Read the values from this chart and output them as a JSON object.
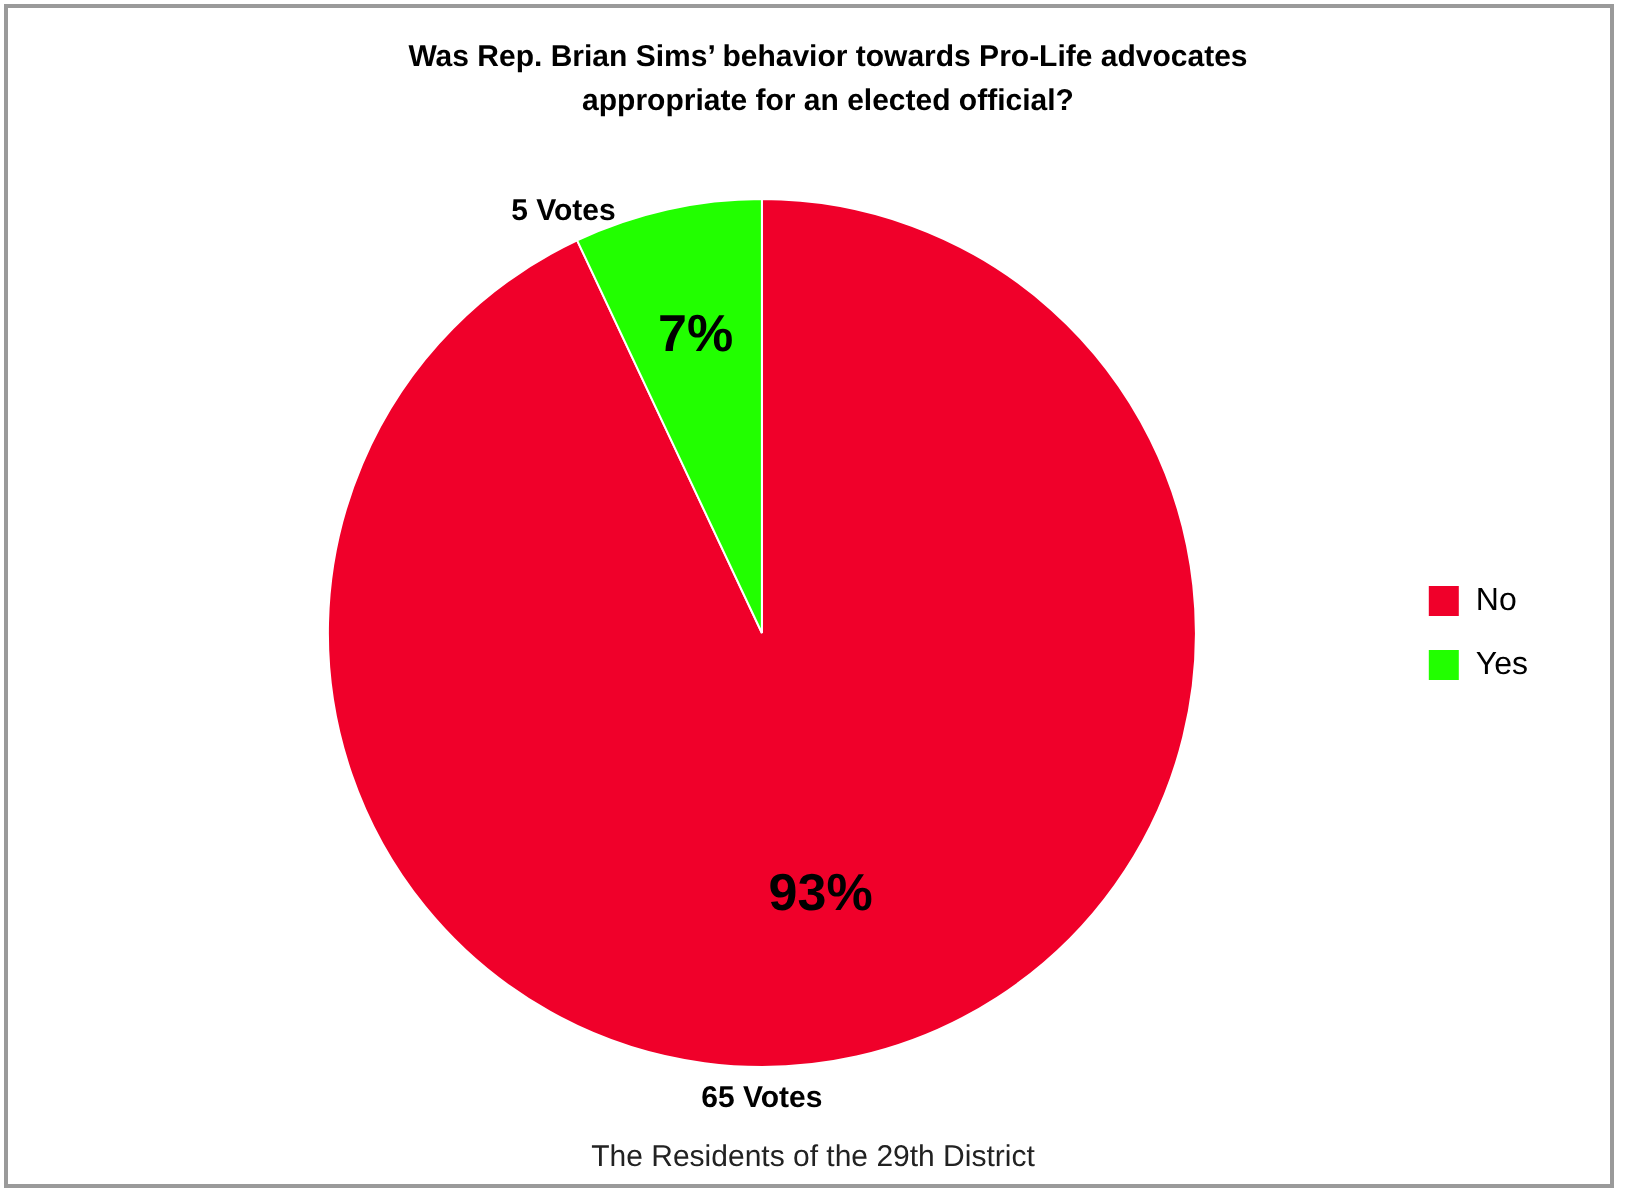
{
  "chart_data": {
    "type": "pie",
    "title": "Was Rep. Brian Sims’ behavior towards Pro-Life advocates appropriate for an elected official?",
    "categories": [
      "No",
      "Yes"
    ],
    "values": [
      93,
      7
    ],
    "colors": [
      "#f0002a",
      "#22ff00"
    ],
    "value_labels": [
      "93%",
      "7%"
    ],
    "legend": "right",
    "annotations": [
      {
        "text": "65 Votes",
        "x": "No"
      },
      {
        "text": "5 Votes",
        "x": "Yes"
      },
      "The Residents of the 29th District"
    ]
  }
}
